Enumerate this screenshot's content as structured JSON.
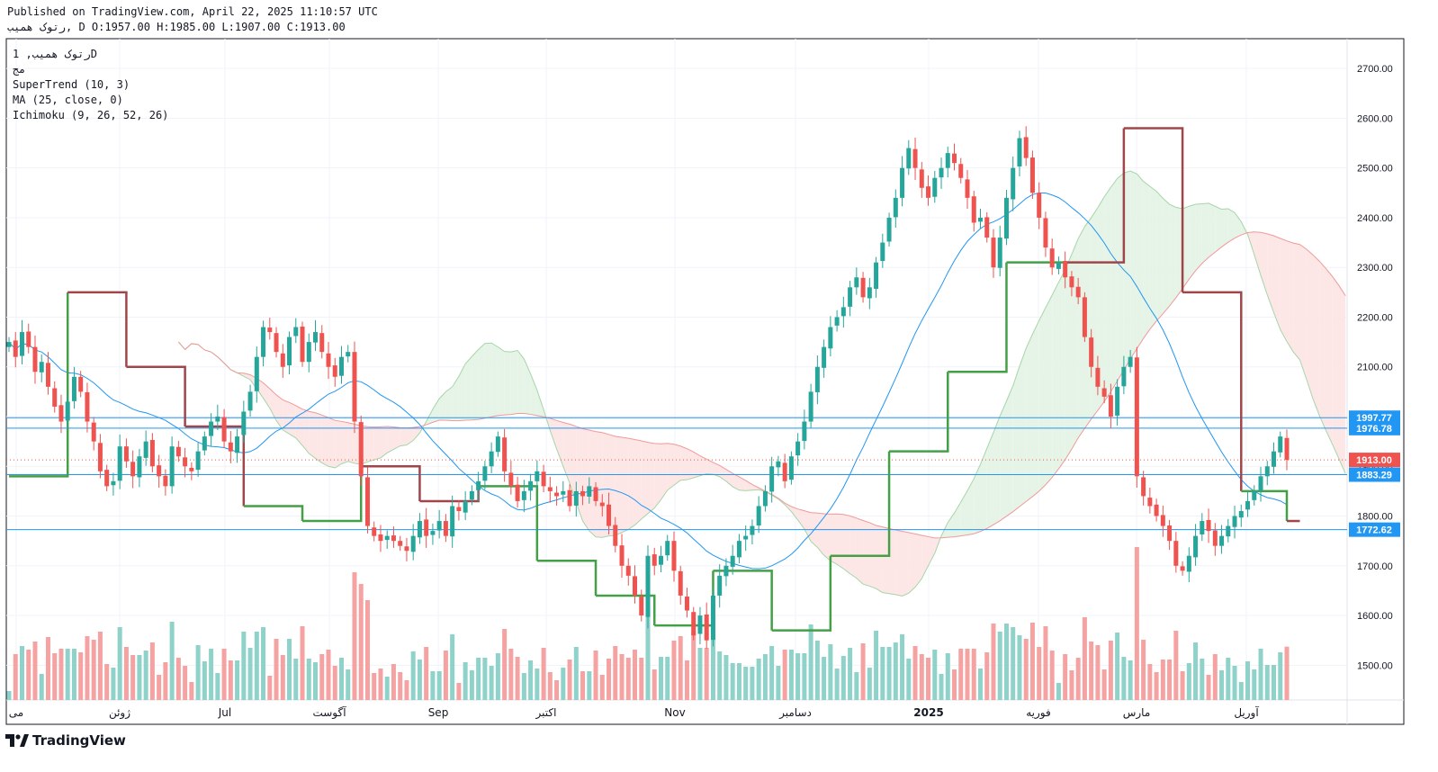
{
  "header": {
    "published": "Published on TradingView.com, April 22, 2025 11:10:57 UTC",
    "ohlc": "رتوک همیب, D O:1957.00 H:1985.00 L:1907.00 C:1913.00"
  },
  "legend": {
    "symbol": "رتوک همیب, 1D",
    "exchange": "مج",
    "ind1": "SuperTrend (10, 3)",
    "ind2": "MA (25, close, 0)",
    "ind3": "Ichimoku (9, 26, 52, 26)"
  },
  "brand": {
    "name": "TradingView"
  },
  "colors": {
    "up": "#26a69a",
    "down": "#ef5350",
    "supertrend_up": "#43a047",
    "supertrend_down": "#a0464b",
    "ma": "#2196f3",
    "hline": "#2196f3",
    "cloud_bull": "#e6f4e7",
    "cloud_bear": "#fde6e6"
  },
  "chart_data": {
    "type": "candlestick",
    "ylim": [
      1430,
      2760
    ],
    "y_ticks": [
      1500,
      1600,
      1700,
      1800,
      1900,
      2000,
      2100,
      2200,
      2300,
      2400,
      2500,
      2600,
      2700
    ],
    "x_labels": [
      "می",
      "ژوئن",
      "Jul",
      "آگوست",
      "Sep",
      "اکتبر",
      "Nov",
      "دسامبر",
      "2025",
      "فوریه",
      "مارس",
      "آوریل"
    ],
    "price_lines": [
      {
        "label": "1997.77",
        "value": 1997.77
      },
      {
        "label": "1976.78",
        "value": 1976.78
      },
      {
        "label": "1883.29",
        "value": 1883.29
      },
      {
        "label": "1772.62",
        "value": 1772.62
      }
    ],
    "last_price": {
      "label": "1913.00",
      "value": 1913.0
    },
    "ohlc_last": {
      "open": 1957.0,
      "high": 1985.0,
      "low": 1907.0,
      "close": 1913.0
    },
    "candles_close": [
      2150,
      2120,
      2170,
      2140,
      2090,
      2110,
      2060,
      2020,
      1990,
      2030,
      2080,
      2050,
      1990,
      1950,
      1890,
      1860,
      1870,
      1940,
      1910,
      1880,
      1920,
      1950,
      1900,
      1880,
      1860,
      1940,
      1920,
      1900,
      1890,
      1930,
      1960,
      1990,
      2000,
      1950,
      1930,
      1960,
      2010,
      2050,
      2120,
      2180,
      2170,
      2130,
      2100,
      2160,
      2180,
      2110,
      2150,
      2170,
      2130,
      2100,
      2080,
      2120,
      2130,
      1990,
      1880,
      1780,
      1760,
      1750,
      1760,
      1750,
      1740,
      1730,
      1760,
      1790,
      1760,
      1770,
      1790,
      1760,
      1820,
      1810,
      1830,
      1850,
      1870,
      1900,
      1930,
      1960,
      1890,
      1860,
      1830,
      1850,
      1870,
      1890,
      1860,
      1850,
      1840,
      1850,
      1820,
      1850,
      1840,
      1860,
      1830,
      1820,
      1780,
      1740,
      1700,
      1680,
      1640,
      1600,
      1720,
      1700,
      1720,
      1750,
      1690,
      1640,
      1610,
      1560,
      1600,
      1550,
      1640,
      1680,
      1700,
      1720,
      1750,
      1760,
      1780,
      1820,
      1850,
      1900,
      1910,
      1870,
      1920,
      1950,
      1990,
      2050,
      2100,
      2140,
      2180,
      2200,
      2220,
      2260,
      2280,
      2240,
      2260,
      2310,
      2350,
      2400,
      2440,
      2500,
      2540,
      2500,
      2460,
      2440,
      2480,
      2500,
      2530,
      2510,
      2480,
      2440,
      2390,
      2400,
      2360,
      2300,
      2360,
      2440,
      2500,
      2560,
      2520,
      2450,
      2400,
      2340,
      2300,
      2310,
      2280,
      2260,
      2240,
      2160,
      2100,
      2060,
      2040,
      2000,
      2060,
      2100,
      2120,
      1880,
      1840,
      1820,
      1800,
      1780,
      1750,
      1700,
      1690,
      1720,
      1760,
      1790,
      1770,
      1740,
      1760,
      1780,
      1800,
      1810,
      1830,
      1850,
      1880,
      1900,
      1930,
      1960,
      1913
    ],
    "supertrend_levels": [
      1880,
      2250,
      2100,
      1980,
      1820,
      1790,
      1900,
      1830,
      1860,
      1710,
      1640,
      1580,
      1690,
      1570,
      1720,
      1930,
      2090,
      2310,
      2310,
      2580,
      2250,
      1850,
      1790
    ]
  }
}
